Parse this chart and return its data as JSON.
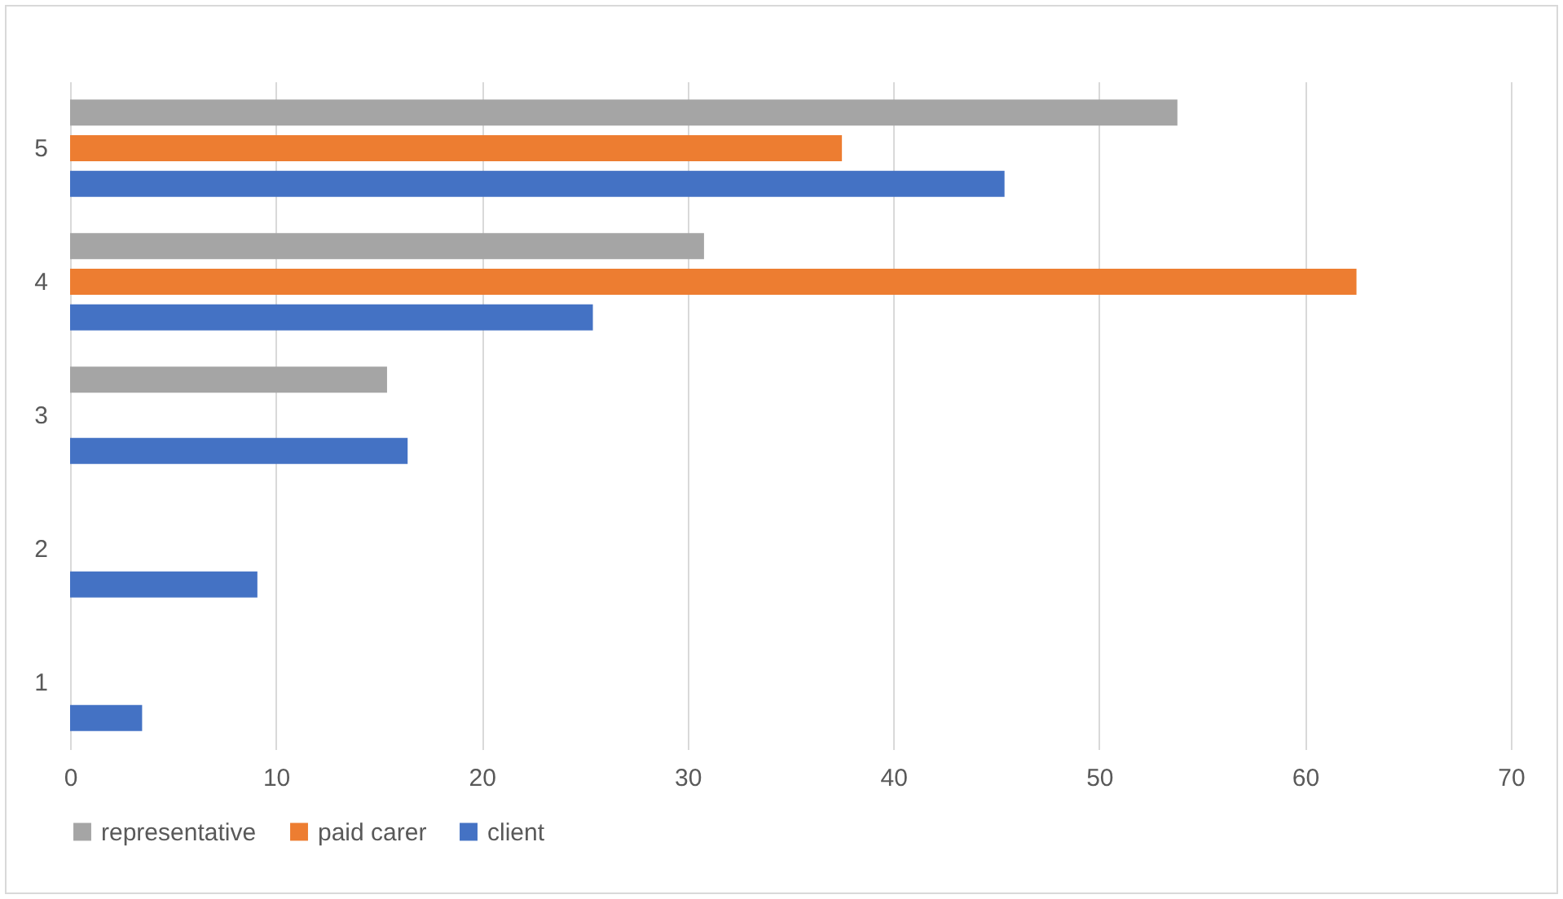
{
  "chart_data": {
    "type": "bar",
    "orientation": "horizontal",
    "categories": [
      "5",
      "4",
      "3",
      "2",
      "1"
    ],
    "series": [
      {
        "name": "representative",
        "color": "#a5a5a5",
        "values": [
          53.8,
          30.8,
          15.4,
          null,
          null
        ]
      },
      {
        "name": "paid carer",
        "color": "#ed7d31",
        "values": [
          37.5,
          62.5,
          null,
          null,
          null
        ]
      },
      {
        "name": "client",
        "color": "#4472c4",
        "values": [
          45.4,
          25.4,
          16.4,
          9.1,
          3.5
        ]
      }
    ],
    "xlim": [
      0,
      70
    ],
    "xticks": [
      0,
      10,
      20,
      30,
      40,
      50,
      60,
      70
    ],
    "grid": "x",
    "legend": "bottom"
  }
}
